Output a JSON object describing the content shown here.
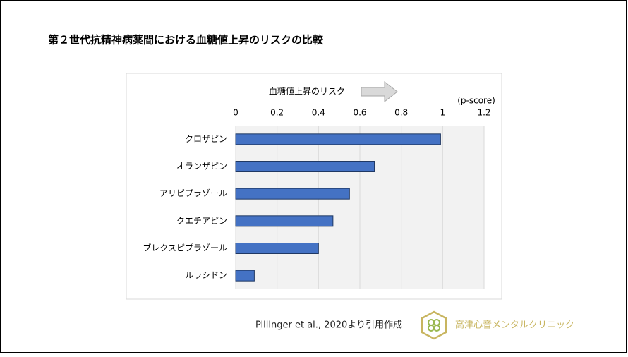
{
  "chart_data": {
    "type": "hbar",
    "title": "第２世代抗精神病薬間における血糖値上昇のリスクの比較",
    "annotation": "血糖値上昇のリスク",
    "x_label": "(p-score)",
    "categories": [
      "クロザピン",
      "オランザピン",
      "アリピプラゾール",
      "クエチアピン",
      "ブレクスピプラゾール",
      "ルラシドン"
    ],
    "values": [
      0.99,
      0.67,
      0.55,
      0.47,
      0.4,
      0.09
    ],
    "color": "#4472c4",
    "xlim": [
      0,
      1.2
    ],
    "xticks": [
      0,
      0.2,
      0.4,
      0.6,
      0.8,
      1,
      1.2
    ],
    "grid": true,
    "source": "Pillinger et al., 2020より引用作成",
    "brand": "高津心音メンタルクリニック"
  }
}
